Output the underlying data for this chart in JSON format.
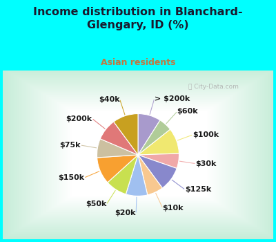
{
  "title": "Income distribution in Blanchard-\nGlengary, ID (%)",
  "subtitle": "Asian residents",
  "background_color": "#00ffff",
  "title_color": "#1a1a2e",
  "subtitle_color": "#c07840",
  "labels": [
    "> $200k",
    "$60k",
    "$100k",
    "$30k",
    "$125k",
    "$10k",
    "$20k",
    "$50k",
    "$150k",
    "$75k",
    "$200k",
    "$40k"
  ],
  "sizes": [
    8.5,
    5.0,
    9.5,
    5.5,
    9.0,
    6.0,
    8.0,
    8.0,
    10.0,
    7.0,
    8.0,
    9.5
  ],
  "colors": [
    "#a89acc",
    "#b0cc98",
    "#f0e870",
    "#f0a8a8",
    "#8888cc",
    "#f8c890",
    "#a0c0f0",
    "#c8e050",
    "#f8a030",
    "#ccc0a0",
    "#e07878",
    "#c8a020"
  ],
  "wedge_linewidth": 0.8,
  "wedge_edgecolor": "#ffffff",
  "label_fontsize": 8,
  "watermark": "  City-Data.com"
}
